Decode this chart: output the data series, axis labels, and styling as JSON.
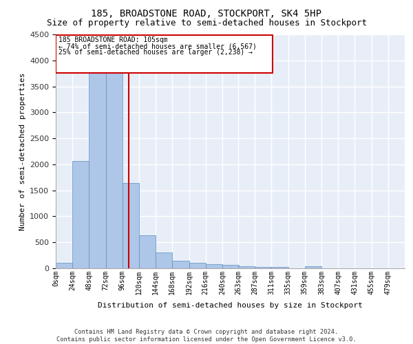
{
  "title1": "185, BROADSTONE ROAD, STOCKPORT, SK4 5HP",
  "title2": "Size of property relative to semi-detached houses in Stockport",
  "xlabel": "Distribution of semi-detached houses by size in Stockport",
  "ylabel": "Number of semi-detached properties",
  "footer1": "Contains HM Land Registry data © Crown copyright and database right 2024.",
  "footer2": "Contains public sector information licensed under the Open Government Licence v3.0.",
  "annotation_line1": "185 BROADSTONE ROAD: 105sqm",
  "annotation_line2": "← 74% of semi-detached houses are smaller (6,567)",
  "annotation_line3": "25% of semi-detached houses are larger (2,238) →",
  "bar_color": "#aec6e8",
  "bar_edge_color": "#5a8fc2",
  "line_color": "#cc0000",
  "box_edge_color": "#cc0000",
  "background_color": "#e8eef8",
  "grid_color": "#ffffff",
  "bins": [
    0,
    24,
    48,
    72,
    96,
    120,
    144,
    168,
    192,
    216,
    240,
    263,
    287,
    311,
    335,
    359,
    383,
    407,
    431,
    455,
    479,
    503
  ],
  "counts": [
    100,
    2070,
    3780,
    3780,
    1640,
    640,
    305,
    150,
    110,
    85,
    60,
    45,
    30,
    20,
    0,
    45,
    0,
    0,
    0,
    0,
    0
  ],
  "property_size": 105,
  "ylim": [
    0,
    4500
  ],
  "yticks": [
    0,
    500,
    1000,
    1500,
    2000,
    2500,
    3000,
    3500,
    4000,
    4500
  ]
}
